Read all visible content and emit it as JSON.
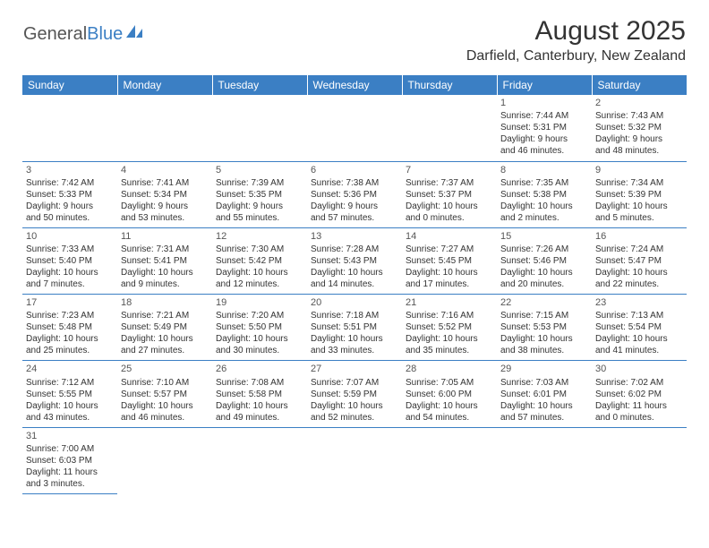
{
  "logo": {
    "general": "General",
    "blue": "Blue"
  },
  "title": "August 2025",
  "location": "Darfield, Canterbury, New Zealand",
  "colors": {
    "header_bg": "#3b7fc4",
    "header_text": "#ffffff",
    "row_border": "#3b7fc4",
    "text": "#333333"
  },
  "day_headers": [
    "Sunday",
    "Monday",
    "Tuesday",
    "Wednesday",
    "Thursday",
    "Friday",
    "Saturday"
  ],
  "weeks": [
    [
      null,
      null,
      null,
      null,
      null,
      {
        "n": "1",
        "sr": "Sunrise: 7:44 AM",
        "ss": "Sunset: 5:31 PM",
        "d1": "Daylight: 9 hours",
        "d2": "and 46 minutes."
      },
      {
        "n": "2",
        "sr": "Sunrise: 7:43 AM",
        "ss": "Sunset: 5:32 PM",
        "d1": "Daylight: 9 hours",
        "d2": "and 48 minutes."
      }
    ],
    [
      {
        "n": "3",
        "sr": "Sunrise: 7:42 AM",
        "ss": "Sunset: 5:33 PM",
        "d1": "Daylight: 9 hours",
        "d2": "and 50 minutes."
      },
      {
        "n": "4",
        "sr": "Sunrise: 7:41 AM",
        "ss": "Sunset: 5:34 PM",
        "d1": "Daylight: 9 hours",
        "d2": "and 53 minutes."
      },
      {
        "n": "5",
        "sr": "Sunrise: 7:39 AM",
        "ss": "Sunset: 5:35 PM",
        "d1": "Daylight: 9 hours",
        "d2": "and 55 minutes."
      },
      {
        "n": "6",
        "sr": "Sunrise: 7:38 AM",
        "ss": "Sunset: 5:36 PM",
        "d1": "Daylight: 9 hours",
        "d2": "and 57 minutes."
      },
      {
        "n": "7",
        "sr": "Sunrise: 7:37 AM",
        "ss": "Sunset: 5:37 PM",
        "d1": "Daylight: 10 hours",
        "d2": "and 0 minutes."
      },
      {
        "n": "8",
        "sr": "Sunrise: 7:35 AM",
        "ss": "Sunset: 5:38 PM",
        "d1": "Daylight: 10 hours",
        "d2": "and 2 minutes."
      },
      {
        "n": "9",
        "sr": "Sunrise: 7:34 AM",
        "ss": "Sunset: 5:39 PM",
        "d1": "Daylight: 10 hours",
        "d2": "and 5 minutes."
      }
    ],
    [
      {
        "n": "10",
        "sr": "Sunrise: 7:33 AM",
        "ss": "Sunset: 5:40 PM",
        "d1": "Daylight: 10 hours",
        "d2": "and 7 minutes."
      },
      {
        "n": "11",
        "sr": "Sunrise: 7:31 AM",
        "ss": "Sunset: 5:41 PM",
        "d1": "Daylight: 10 hours",
        "d2": "and 9 minutes."
      },
      {
        "n": "12",
        "sr": "Sunrise: 7:30 AM",
        "ss": "Sunset: 5:42 PM",
        "d1": "Daylight: 10 hours",
        "d2": "and 12 minutes."
      },
      {
        "n": "13",
        "sr": "Sunrise: 7:28 AM",
        "ss": "Sunset: 5:43 PM",
        "d1": "Daylight: 10 hours",
        "d2": "and 14 minutes."
      },
      {
        "n": "14",
        "sr": "Sunrise: 7:27 AM",
        "ss": "Sunset: 5:45 PM",
        "d1": "Daylight: 10 hours",
        "d2": "and 17 minutes."
      },
      {
        "n": "15",
        "sr": "Sunrise: 7:26 AM",
        "ss": "Sunset: 5:46 PM",
        "d1": "Daylight: 10 hours",
        "d2": "and 20 minutes."
      },
      {
        "n": "16",
        "sr": "Sunrise: 7:24 AM",
        "ss": "Sunset: 5:47 PM",
        "d1": "Daylight: 10 hours",
        "d2": "and 22 minutes."
      }
    ],
    [
      {
        "n": "17",
        "sr": "Sunrise: 7:23 AM",
        "ss": "Sunset: 5:48 PM",
        "d1": "Daylight: 10 hours",
        "d2": "and 25 minutes."
      },
      {
        "n": "18",
        "sr": "Sunrise: 7:21 AM",
        "ss": "Sunset: 5:49 PM",
        "d1": "Daylight: 10 hours",
        "d2": "and 27 minutes."
      },
      {
        "n": "19",
        "sr": "Sunrise: 7:20 AM",
        "ss": "Sunset: 5:50 PM",
        "d1": "Daylight: 10 hours",
        "d2": "and 30 minutes."
      },
      {
        "n": "20",
        "sr": "Sunrise: 7:18 AM",
        "ss": "Sunset: 5:51 PM",
        "d1": "Daylight: 10 hours",
        "d2": "and 33 minutes."
      },
      {
        "n": "21",
        "sr": "Sunrise: 7:16 AM",
        "ss": "Sunset: 5:52 PM",
        "d1": "Daylight: 10 hours",
        "d2": "and 35 minutes."
      },
      {
        "n": "22",
        "sr": "Sunrise: 7:15 AM",
        "ss": "Sunset: 5:53 PM",
        "d1": "Daylight: 10 hours",
        "d2": "and 38 minutes."
      },
      {
        "n": "23",
        "sr": "Sunrise: 7:13 AM",
        "ss": "Sunset: 5:54 PM",
        "d1": "Daylight: 10 hours",
        "d2": "and 41 minutes."
      }
    ],
    [
      {
        "n": "24",
        "sr": "Sunrise: 7:12 AM",
        "ss": "Sunset: 5:55 PM",
        "d1": "Daylight: 10 hours",
        "d2": "and 43 minutes."
      },
      {
        "n": "25",
        "sr": "Sunrise: 7:10 AM",
        "ss": "Sunset: 5:57 PM",
        "d1": "Daylight: 10 hours",
        "d2": "and 46 minutes."
      },
      {
        "n": "26",
        "sr": "Sunrise: 7:08 AM",
        "ss": "Sunset: 5:58 PM",
        "d1": "Daylight: 10 hours",
        "d2": "and 49 minutes."
      },
      {
        "n": "27",
        "sr": "Sunrise: 7:07 AM",
        "ss": "Sunset: 5:59 PM",
        "d1": "Daylight: 10 hours",
        "d2": "and 52 minutes."
      },
      {
        "n": "28",
        "sr": "Sunrise: 7:05 AM",
        "ss": "Sunset: 6:00 PM",
        "d1": "Daylight: 10 hours",
        "d2": "and 54 minutes."
      },
      {
        "n": "29",
        "sr": "Sunrise: 7:03 AM",
        "ss": "Sunset: 6:01 PM",
        "d1": "Daylight: 10 hours",
        "d2": "and 57 minutes."
      },
      {
        "n": "30",
        "sr": "Sunrise: 7:02 AM",
        "ss": "Sunset: 6:02 PM",
        "d1": "Daylight: 11 hours",
        "d2": "and 0 minutes."
      }
    ],
    [
      {
        "n": "31",
        "sr": "Sunrise: 7:00 AM",
        "ss": "Sunset: 6:03 PM",
        "d1": "Daylight: 11 hours",
        "d2": "and 3 minutes."
      },
      null,
      null,
      null,
      null,
      null,
      null
    ]
  ]
}
